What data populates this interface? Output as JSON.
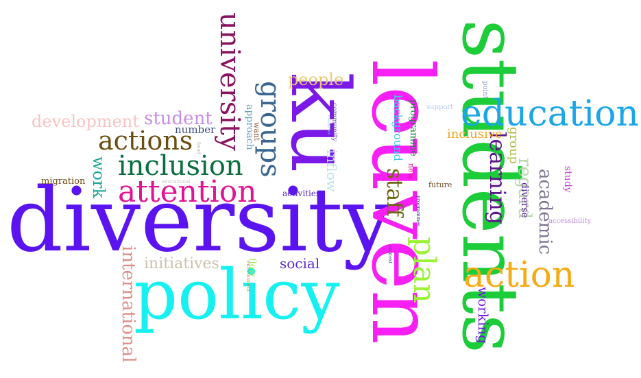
{
  "words": {
    "diversity": "diversity",
    "policy": "policy",
    "leuven": "leuven",
    "students": "students",
    "ku": "ku",
    "education": "education",
    "action": "action",
    "attention": "attention",
    "inclusion": "inclusion",
    "actions": "actions",
    "university": "university",
    "groups": "groups",
    "plan": "plan",
    "staff": "staff",
    "learning": "learning",
    "regard": "regard",
    "academic": "academic",
    "international": "international",
    "development": "development",
    "student": "student",
    "people": "people",
    "initiatives": "initiatives",
    "work": "work",
    "social": "social",
    "inflow": "inflow",
    "background": "background",
    "programme": "programme",
    "inclusive": "inclusive",
    "group": "group",
    "working": "working",
    "study": "study",
    "diverse": "diverse",
    "number": "number",
    "approach": "approach",
    "want": "want",
    "community": "community",
    "migration": "migration",
    "activities": "activities",
    "flow": "flow",
    "future": "future",
    "new": "new",
    "support": "support",
    "point": "point",
    "accessibility": "accessibility",
    "programmes": "programmes",
    "context": "context",
    "environment": "environment",
    "educational": "educational",
    "found": "found",
    "countries": "countries"
  },
  "colors": {
    "diversity": "#5b14f0",
    "policy": "#17f0f0",
    "leuven": "#f71ff4",
    "students": "#1ccc38",
    "ku": "#7a19e8",
    "education": "#1ba6e8",
    "action": "#f5ab16",
    "attention": "#e21493",
    "inclusion": "#0c6e3e"
  }
}
